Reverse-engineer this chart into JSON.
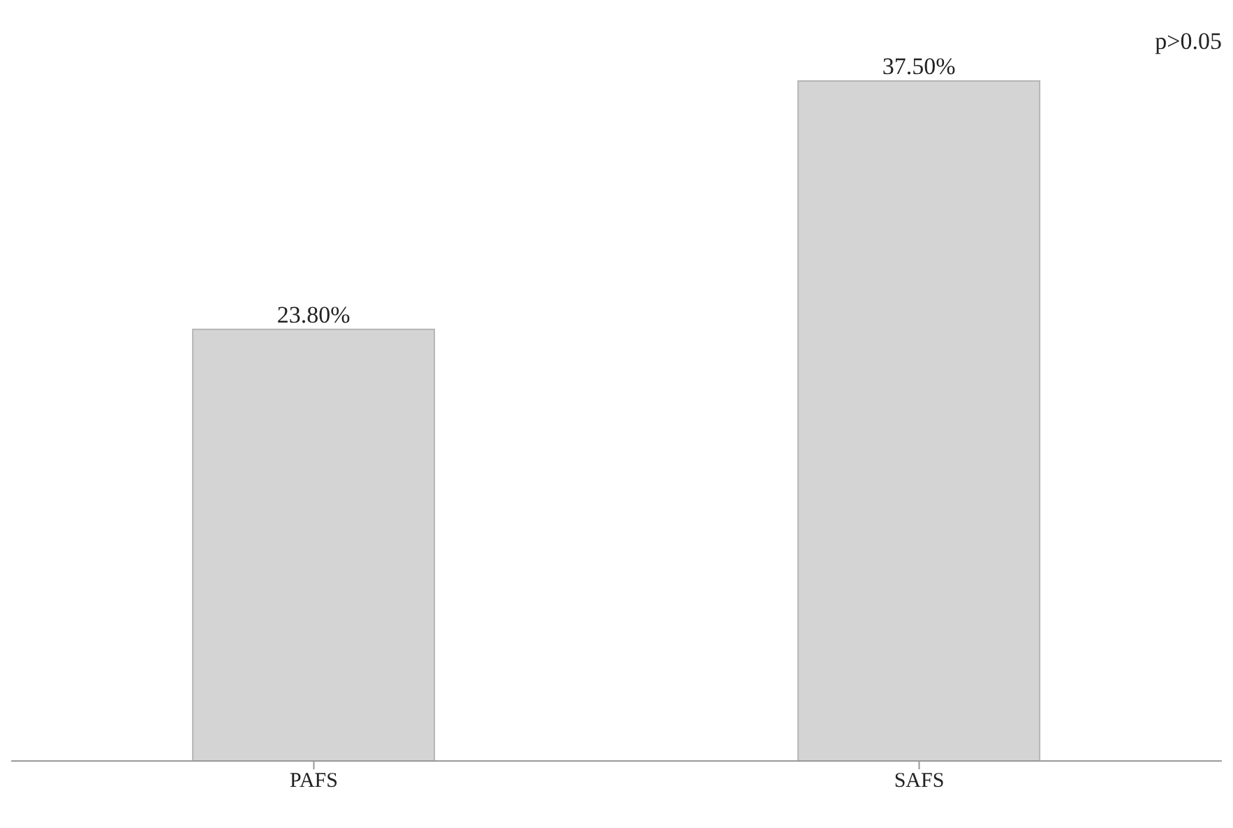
{
  "chart_data": {
    "type": "bar",
    "categories": [
      "PAFS",
      "SAFS"
    ],
    "values": [
      23.8,
      37.5
    ],
    "value_labels": [
      "23.80%",
      "37.50%"
    ],
    "color": "#d4d4d4",
    "annotations": [
      "p>0.05"
    ]
  }
}
